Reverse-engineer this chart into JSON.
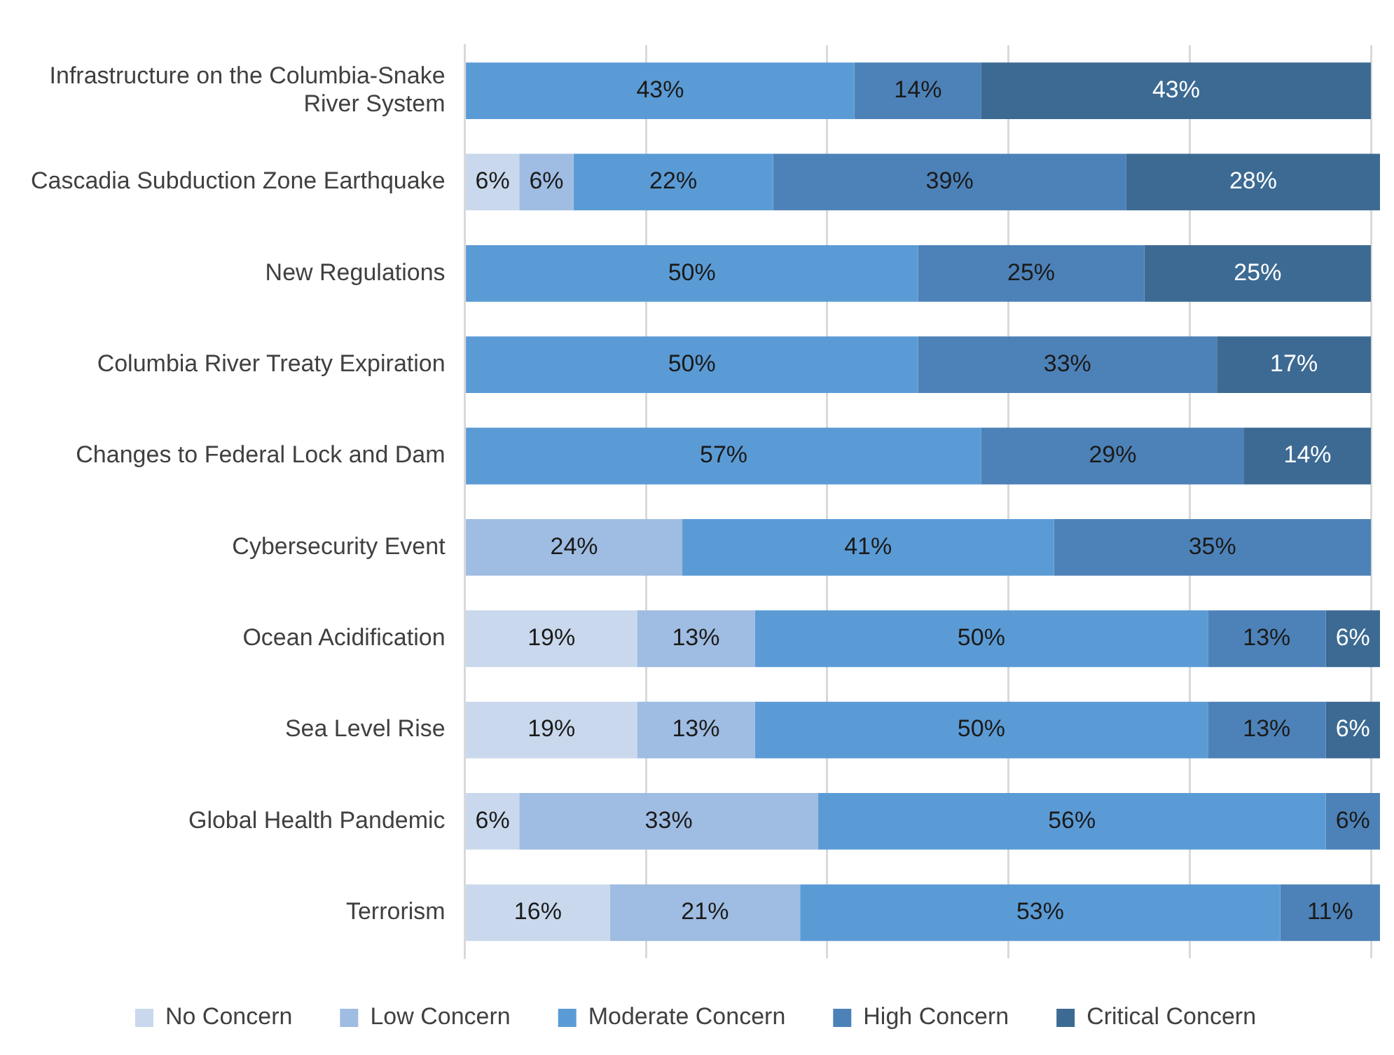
{
  "chart_data": {
    "type": "bar",
    "orientation": "horizontal",
    "stacked": true,
    "categories": [
      "Infrastructure on the Columbia-Snake River System",
      "Cascadia Subduction Zone Earthquake",
      "New Regulations",
      "Columbia River Treaty Expiration",
      "Changes to Federal Lock and Dam",
      "Cybersecurity Event",
      "Ocean Acidification",
      "Sea Level Rise",
      "Global Health Pandemic",
      "Terrorism"
    ],
    "series": [
      {
        "name": "No Concern",
        "color": "#c9d8ec",
        "values": [
          null,
          6,
          null,
          null,
          null,
          null,
          19,
          19,
          6,
          16
        ],
        "value_labels": [
          null,
          "6%",
          null,
          null,
          null,
          null,
          "19%",
          "19%",
          "6%",
          "16%"
        ]
      },
      {
        "name": "Low Concern",
        "color": "#9fbce2",
        "values": [
          null,
          6,
          null,
          null,
          null,
          24,
          13,
          13,
          33,
          21
        ],
        "value_labels": [
          null,
          "6%",
          null,
          null,
          null,
          "24%",
          "13%",
          "13%",
          "33%",
          "21%"
        ]
      },
      {
        "name": "Moderate Concern",
        "color": "#5b9bd5",
        "values": [
          43,
          22,
          50,
          50,
          57,
          41,
          50,
          50,
          56,
          53
        ],
        "value_labels": [
          "43%",
          "22%",
          "50%",
          "50%",
          "57%",
          "41%",
          "50%",
          "50%",
          "56%",
          "53%"
        ]
      },
      {
        "name": "High Concern",
        "color": "#4d82b8",
        "values": [
          14,
          39,
          25,
          33,
          29,
          35,
          13,
          13,
          6,
          11
        ],
        "value_labels": [
          "14%",
          "39%",
          "25%",
          "33%",
          "29%",
          "35%",
          "13%",
          "13%",
          "6%",
          "11%"
        ]
      },
      {
        "name": "Critical Concern",
        "color": "#3c6a93",
        "values": [
          43,
          28,
          25,
          17,
          14,
          null,
          6,
          6,
          null,
          null
        ],
        "value_labels": [
          "43%",
          "28%",
          "25%",
          "17%",
          "14%",
          null,
          "6%",
          "6%",
          null,
          null
        ]
      }
    ],
    "xlim": [
      0,
      101
    ],
    "xticks": [
      {
        "value": 0,
        "label": null
      },
      {
        "value": 20,
        "label": null
      },
      {
        "value": 40,
        "label": null
      },
      {
        "value": 60,
        "label": null
      },
      {
        "value": 80,
        "label": null
      },
      {
        "value": 100,
        "label": null
      }
    ],
    "tick_labels": "y",
    "grid": "x",
    "legend": "bottom"
  }
}
